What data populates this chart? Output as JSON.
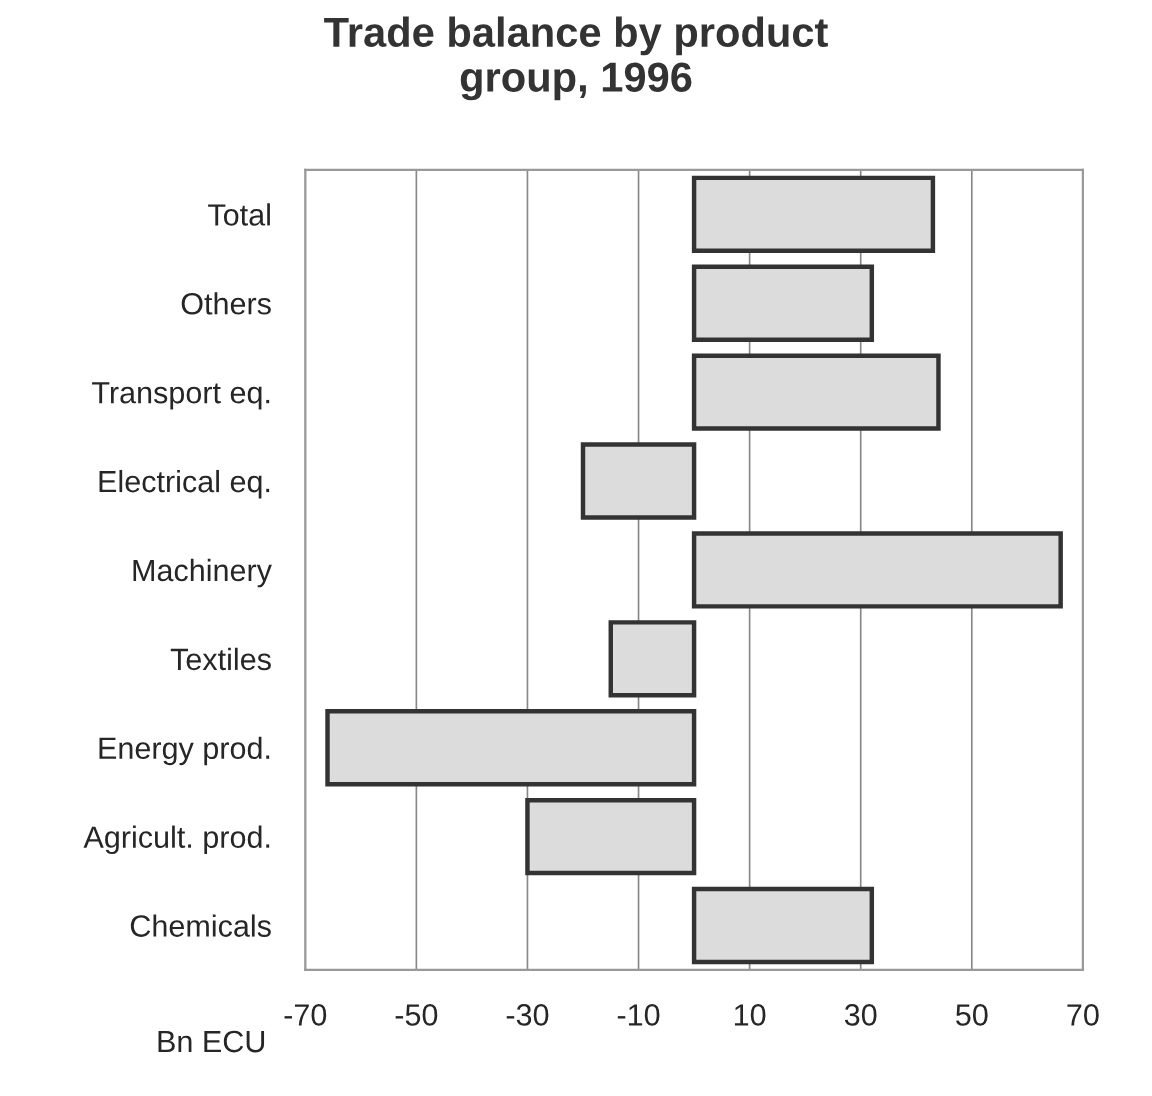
{
  "chart_data": {
    "type": "bar",
    "orientation": "horizontal",
    "title": "Trade balance by product\ngroup, 1996",
    "xlabel": "Bn ECU",
    "categories": [
      "Total",
      "Others",
      "Transport eq.",
      "Electrical eq.",
      "Machinery",
      "Textiles",
      "Energy prod.",
      "Agricult. prod.",
      "Chemicals"
    ],
    "values": [
      43,
      32,
      44,
      -20,
      66,
      -15,
      -66,
      -30,
      32
    ],
    "color": "#dcdcdc",
    "xlim": [
      -70,
      70
    ],
    "xticks": [
      -70,
      -50,
      -30,
      -10,
      10,
      30,
      50,
      70
    ],
    "grid": "x",
    "legend": false
  }
}
